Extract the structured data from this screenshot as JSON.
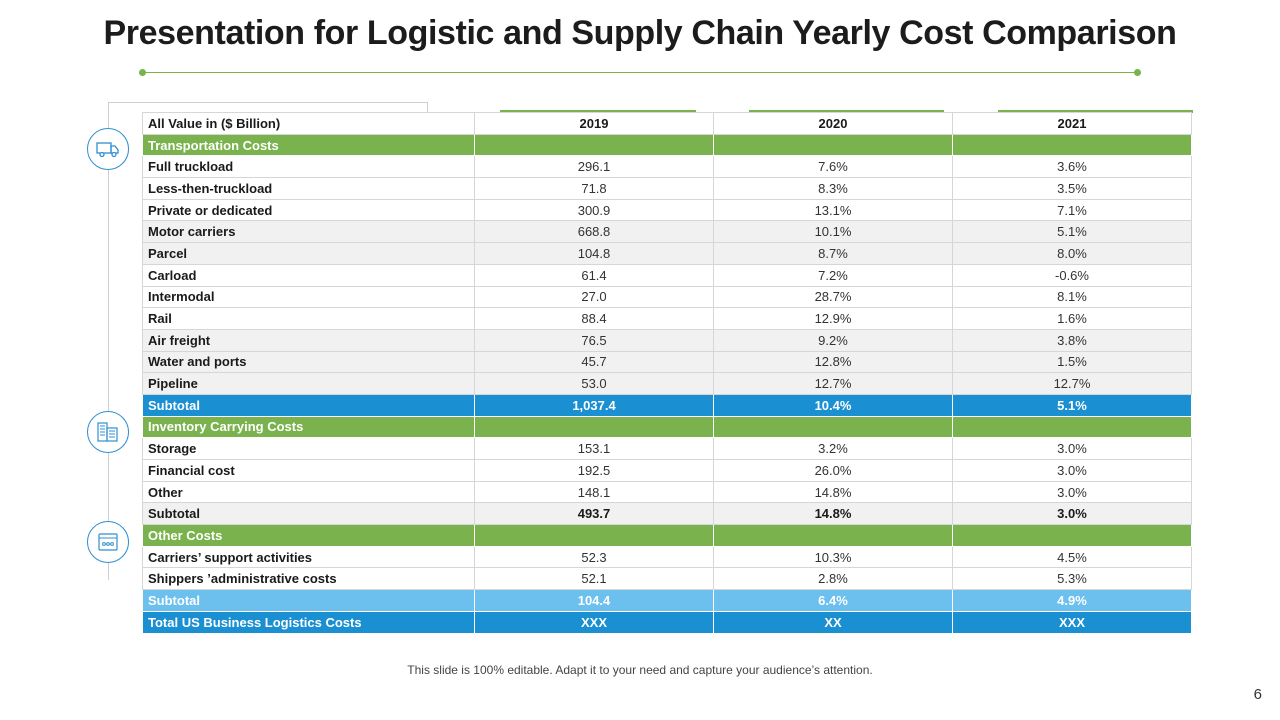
{
  "title": "Presentation for Logistic and Supply Chain Yearly Cost Comparison",
  "icons": [
    "truck-icon",
    "warehouse-icon",
    "document-icon"
  ],
  "table": {
    "header": {
      "label": "All Value in ($ Billion)",
      "y2019": "2019",
      "y2020": "2020",
      "y2021": "2021"
    },
    "rows": [
      {
        "type": "sec",
        "label": "Transportation  Costs",
        "v1": "",
        "v2": "",
        "v3": ""
      },
      {
        "type": "row",
        "label": "Full truckload",
        "v1": "296.1",
        "v2": "7.6%",
        "v3": "3.6%"
      },
      {
        "type": "row",
        "label": "Less-then-truckload",
        "v1": "71.8",
        "v2": "8.3%",
        "v3": "3.5%"
      },
      {
        "type": "row",
        "label": "Private or dedicated",
        "v1": "300.9",
        "v2": "13.1%",
        "v3": "7.1%"
      },
      {
        "type": "alt",
        "label": "Motor carriers",
        "v1": "668.8",
        "v2": "10.1%",
        "v3": "5.1%"
      },
      {
        "type": "alt",
        "label": "Parcel",
        "v1": "104.8",
        "v2": "8.7%",
        "v3": "8.0%"
      },
      {
        "type": "row",
        "label": "Carload",
        "v1": "61.4",
        "v2": "7.2%",
        "v3": "-0.6%"
      },
      {
        "type": "row",
        "label": "Intermodal",
        "v1": "27.0",
        "v2": "28.7%",
        "v3": "8.1%"
      },
      {
        "type": "row",
        "label": "Rail",
        "v1": "88.4",
        "v2": "12.9%",
        "v3": "1.6%"
      },
      {
        "type": "alt",
        "label": "Air freight",
        "v1": "76.5",
        "v2": "9.2%",
        "v3": "3.8%"
      },
      {
        "type": "alt",
        "label": "Water and ports",
        "v1": "45.7",
        "v2": "12.8%",
        "v3": "1.5%"
      },
      {
        "type": "alt",
        "label": "Pipeline",
        "v1": "53.0",
        "v2": "12.7%",
        "v3": "12.7%"
      },
      {
        "type": "sub-blue",
        "label": "Subtotal",
        "v1": "1,037.4",
        "v2": "10.4%",
        "v3": "5.1%"
      },
      {
        "type": "sec",
        "label": "Inventory Carrying Costs",
        "v1": "",
        "v2": "",
        "v3": ""
      },
      {
        "type": "row",
        "label": "Storage",
        "v1": "153.1",
        "v2": "3.2%",
        "v3": "3.0%"
      },
      {
        "type": "row",
        "label": "Financial cost",
        "v1": "192.5",
        "v2": "26.0%",
        "v3": "3.0%"
      },
      {
        "type": "row",
        "label": "Other",
        "v1": "148.1",
        "v2": "14.8%",
        "v3": "3.0%"
      },
      {
        "type": "sub-grey",
        "label": "Subtotal",
        "v1": "493.7",
        "v2": "14.8%",
        "v3": "3.0%"
      },
      {
        "type": "sec",
        "label": "Other Costs",
        "v1": "",
        "v2": "",
        "v3": ""
      },
      {
        "type": "row",
        "label": "Carriers’ support   activities",
        "v1": "52.3",
        "v2": "10.3%",
        "v3": "4.5%"
      },
      {
        "type": "row",
        "label": "Shippers ’administrative costs",
        "v1": "52.1",
        "v2": "2.8%",
        "v3": "5.3%"
      },
      {
        "type": "sub-light",
        "label": "Subtotal",
        "v1": "104.4",
        "v2": "6.4%",
        "v3": "4.9%"
      },
      {
        "type": "total",
        "label": "Total US Business  Logistics   Costs",
        "v1": "XXX",
        "v2": "XX",
        "v3": "XXX"
      }
    ]
  },
  "footer": "This slide is 100% editable. Adapt it to your need and capture your audience’s attention.",
  "page_number": "6",
  "colors": {
    "green": "#7ab34d",
    "blue": "#1a8fd1",
    "light_blue": "#6cc0ee",
    "grey": "#f1f1f1"
  }
}
